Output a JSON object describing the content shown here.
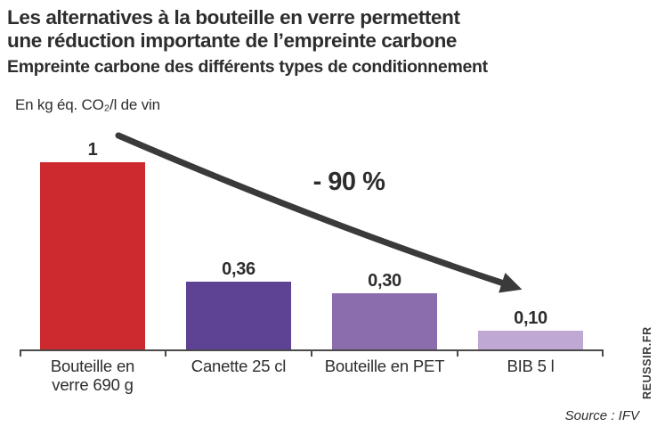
{
  "title": {
    "line1": "Les alternatives à la bouteille en verre permettent",
    "line2": "une réduction importante de l’empreinte carbone"
  },
  "subtitle": "Empreinte carbone des différents types de conditionnement",
  "chart_data": {
    "type": "bar",
    "title": "Empreinte carbone des différents types de conditionnement",
    "unit_label": "En kg éq. CO₂/l de vin",
    "categories": [
      "Bouteille en verre 690 g",
      "Canette 25 cl",
      "Bouteille en PET",
      "BIB 5 l"
    ],
    "categories_display": [
      "Bouteille en\nverre 690 g",
      "Canette 25 cl",
      "Bouteille en PET",
      "BIB 5 l"
    ],
    "values": [
      1,
      0.36,
      0.3,
      0.1
    ],
    "value_labels": [
      "1",
      "0,36",
      "0,30",
      "0,10"
    ],
    "bar_colors": [
      "#cc2a2f",
      "#5e4294",
      "#8b6cad",
      "#c0a8d4"
    ],
    "xlabel": "",
    "ylabel": "En kg éq. CO₂/l de vin",
    "ylim": [
      0,
      1.2
    ],
    "grid": false,
    "legend": false,
    "annotation": "- 90 %",
    "arrow_color": "#3a3a3a",
    "axis_color": "#4a4a4a",
    "text_color": "#2d2d2d"
  },
  "footer": {
    "watermark": "REUSSIR.FR",
    "source": "Source : IFV"
  }
}
